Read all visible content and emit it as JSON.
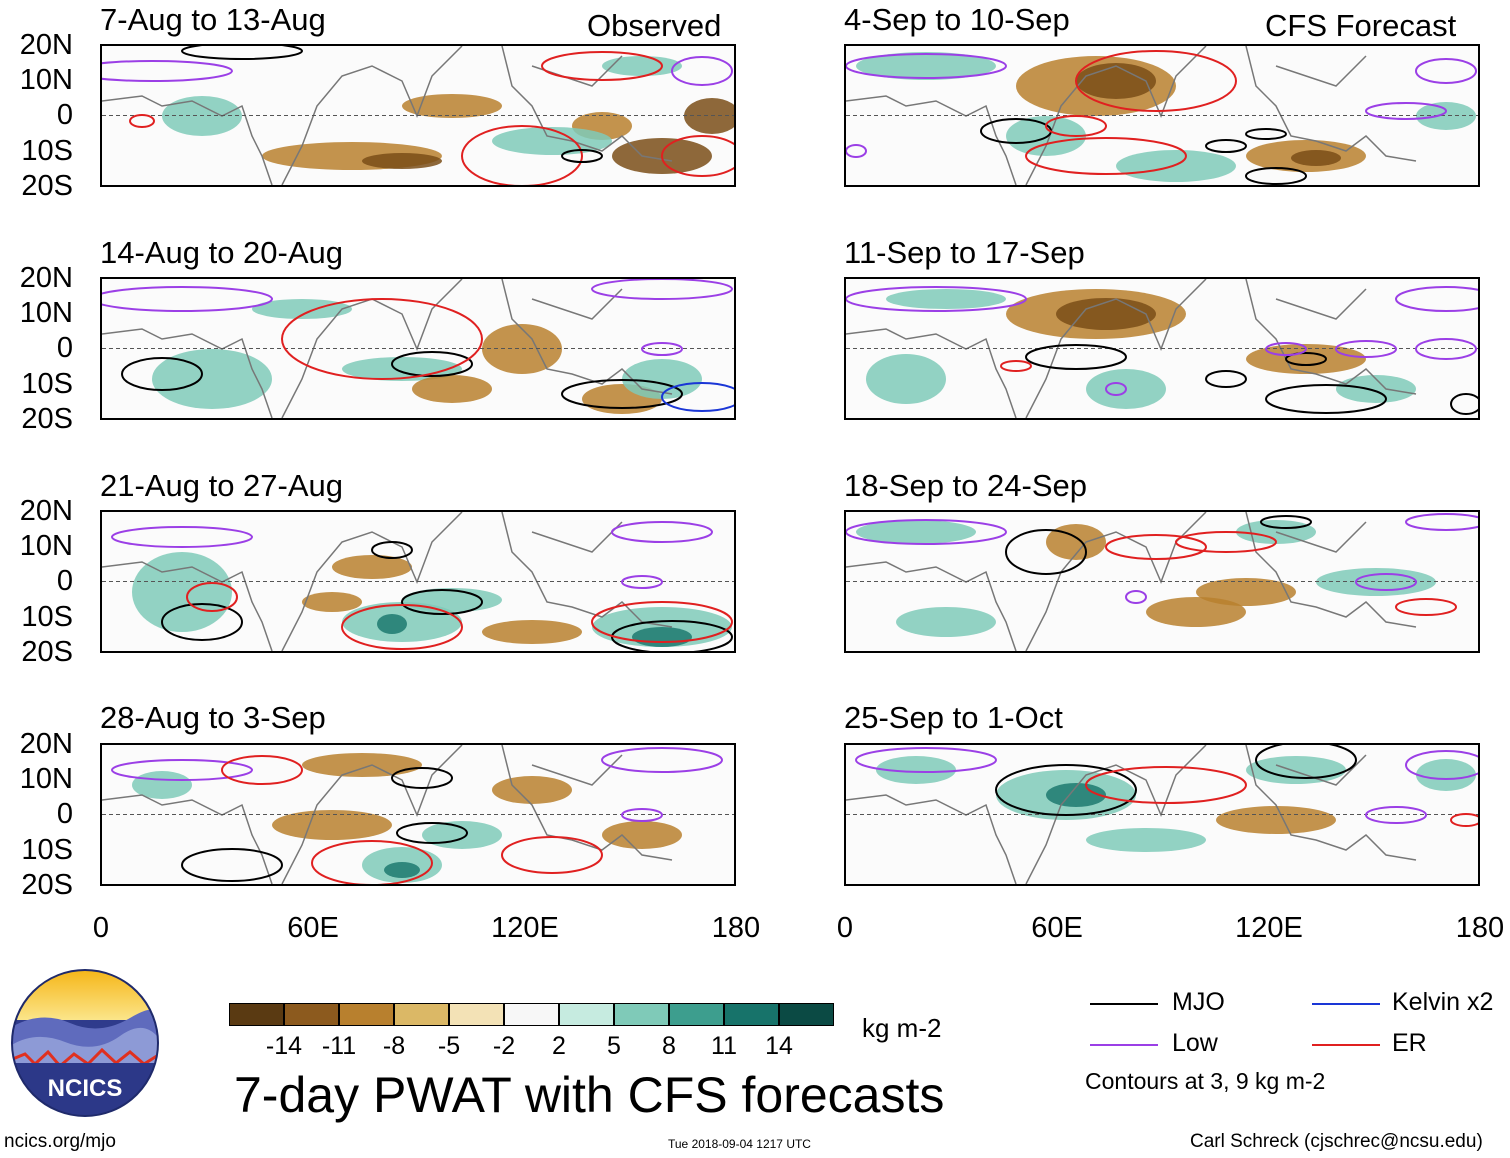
{
  "figure": {
    "title": "7-day PWAT with CFS forecasts",
    "units": "kg m-2",
    "contour_note": "Contours at 3, 9 kg m-2",
    "website": "ncics.org/mjo",
    "timestamp": "Tue 2018-09-04 1217 UTC",
    "author": "Carl Schreck (cjschrec@ncsu.edu)",
    "logo_text": "NCICS"
  },
  "columns": {
    "left_label": "Observed",
    "right_label": "CFS Forecast"
  },
  "axes": {
    "lat_ticks": [
      "20N",
      "10N",
      "0",
      "10S",
      "20S"
    ],
    "lon_ticks": [
      "0",
      "60E",
      "120E",
      "180"
    ],
    "lat_range": [
      -20,
      20
    ],
    "lon_range": [
      0,
      180
    ]
  },
  "panels": [
    {
      "title": "7-Aug to 13-Aug",
      "column": "left",
      "row": 0,
      "kind": "Observed"
    },
    {
      "title": "14-Aug to 20-Aug",
      "column": "left",
      "row": 1,
      "kind": "Observed"
    },
    {
      "title": "21-Aug to 27-Aug",
      "column": "left",
      "row": 2,
      "kind": "Observed"
    },
    {
      "title": "28-Aug to 3-Sep",
      "column": "left",
      "row": 3,
      "kind": "Observed"
    },
    {
      "title": "4-Sep to 10-Sep",
      "column": "right",
      "row": 0,
      "kind": "CFS Forecast"
    },
    {
      "title": "11-Sep to 17-Sep",
      "column": "right",
      "row": 1,
      "kind": "CFS Forecast"
    },
    {
      "title": "18-Sep to 24-Sep",
      "column": "right",
      "row": 2,
      "kind": "CFS Forecast"
    },
    {
      "title": "25-Sep to 1-Oct",
      "column": "right",
      "row": 3,
      "kind": "CFS Forecast"
    }
  ],
  "colorbar": {
    "labels": [
      "-14",
      "-11",
      "-8",
      "-5",
      "-2",
      "2",
      "5",
      "8",
      "11",
      "14"
    ],
    "colors": [
      "#5a3a12",
      "#8c5a1e",
      "#b8802e",
      "#dbb866",
      "#f3e2b6",
      "#f7f7f7",
      "#c6ebe0",
      "#7fcab8",
      "#3d9e8e",
      "#17736a",
      "#0b4a44"
    ]
  },
  "legend": [
    {
      "label": "MJO",
      "color": "#000000"
    },
    {
      "label": "Kelvin x2",
      "color": "#1a36d6"
    },
    {
      "label": "Low",
      "color": "#9b3fe6"
    },
    {
      "label": "ER",
      "color": "#e02020"
    }
  ],
  "colors": {
    "brown": "#b8802e",
    "dark_brown": "#7a4e18",
    "teal": "#7fcab8",
    "dark_teal": "#1d7a70",
    "mjo": "#000000",
    "low": "#9b3fe6",
    "er": "#e02020",
    "kelvin": "#1a36d6"
  }
}
